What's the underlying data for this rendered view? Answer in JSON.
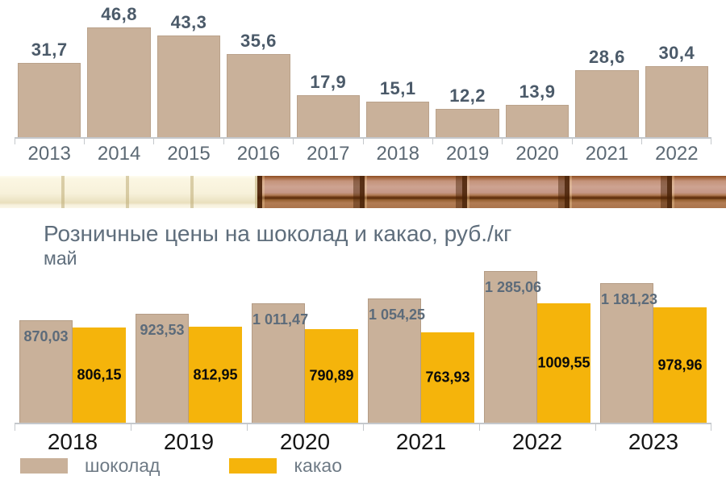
{
  "accent_colors": {
    "chocolate_bar": "#c9b19a",
    "cacao_bar": "#f5b40b",
    "axis": "#c4c8cc",
    "value_label_dark_slate": "#4b5a69",
    "title_gray_blue": "#5f6e7c"
  },
  "chart_data": [
    {
      "type": "bar",
      "title": "",
      "categories": [
        "2013",
        "2014",
        "2015",
        "2016",
        "2017",
        "2018",
        "2019",
        "2020",
        "2021",
        "2022"
      ],
      "values": [
        31.7,
        46.8,
        43.3,
        35.6,
        17.9,
        15.1,
        12.2,
        13.9,
        28.6,
        30.4
      ],
      "labels": [
        "31,7",
        "46,8",
        "43,3",
        "35,6",
        "17,9",
        "15,1",
        "12,2",
        "13,9",
        "28,6",
        "30,4"
      ],
      "bar_color": "#c9b19a",
      "ylim": [
        0,
        50
      ],
      "grid": false,
      "value_labels_position": "above-bar"
    },
    {
      "type": "bar",
      "title": "Розничные цены на шоколад и какао, руб./кг",
      "subtitle": "май",
      "categories": [
        "2018",
        "2019",
        "2020",
        "2021",
        "2022",
        "2023"
      ],
      "series": [
        {
          "name": "шоколад",
          "color": "#c9b19a",
          "values": [
            870.03,
            923.53,
            1011.47,
            1054.25,
            1285.06,
            1181.23
          ],
          "labels": [
            "870,03",
            "923,53",
            "1 011,47",
            "1 054,25",
            "1 285,06",
            "1 181,23"
          ]
        },
        {
          "name": "какао",
          "color": "#f5b40b",
          "values": [
            806.15,
            812.95,
            790.89,
            763.93,
            1009.55,
            978.96
          ],
          "labels": [
            "806,15",
            "812,95",
            "790,89",
            "763,93",
            "1009,55",
            "978,96"
          ]
        }
      ],
      "ylim": [
        0,
        1300
      ],
      "grid": false,
      "legend_position": "bottom",
      "value_labels_position": "inside-bar"
    }
  ],
  "decor": {
    "strip_description": "white-chocolate-and-milk-chocolate-bar-photo-strip"
  }
}
